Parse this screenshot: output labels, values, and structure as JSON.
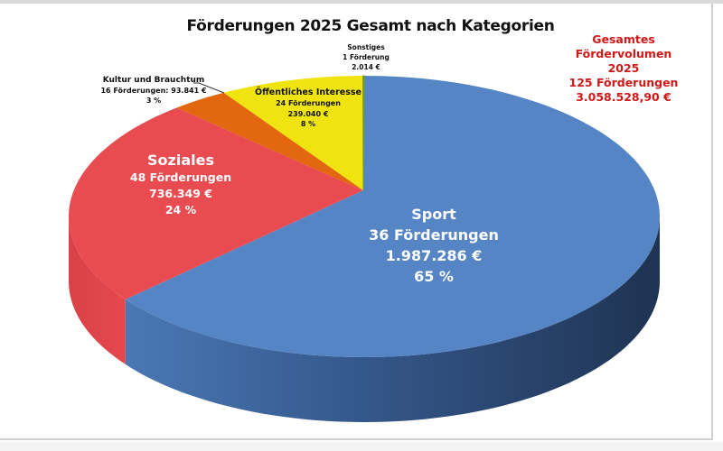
{
  "chart_data": {
    "type": "pie",
    "style": "3d",
    "title": "Förderungen 2025 Gesamt nach Kategorien",
    "total": {
      "line1": "Gesamtes Fördervolumen",
      "line2": "2025",
      "line3": "125 Förderungen",
      "line4": "3.058.528,90 €"
    },
    "slices": [
      {
        "name": "Sport",
        "count_label": "36 Förderungen",
        "amount_label": "1.987.286 €",
        "percent_label": "65 %",
        "value": 1987286,
        "color": "#5585c5",
        "side_color": "#2d4a73"
      },
      {
        "name": "Soziales",
        "count_label": "48 Förderungen",
        "amount_label": "736.349 €",
        "percent_label": "24 %",
        "value": 736349,
        "color": "#e84c51",
        "side_color": "#c73a3e"
      },
      {
        "name": "Kultur und Brauchtum",
        "count_label": "16 Förderungen: 93.841 €",
        "percent_label": "3 %",
        "value": 93841,
        "color": "#e2670f",
        "side_color": "#b3500a"
      },
      {
        "name": "Öffentliches Interesse",
        "count_label": "24 Förderungen",
        "amount_label": "239.040 €",
        "percent_label": "8 %",
        "value": 239040,
        "color": "#f0e410",
        "side_color": "#c2b80c"
      },
      {
        "name": "Sonstiges",
        "count_label": "1 Förderung",
        "amount_label": "2.014 €",
        "value": 2014,
        "color": "#6f9a2a",
        "side_color": "#4f6e1e"
      }
    ]
  }
}
